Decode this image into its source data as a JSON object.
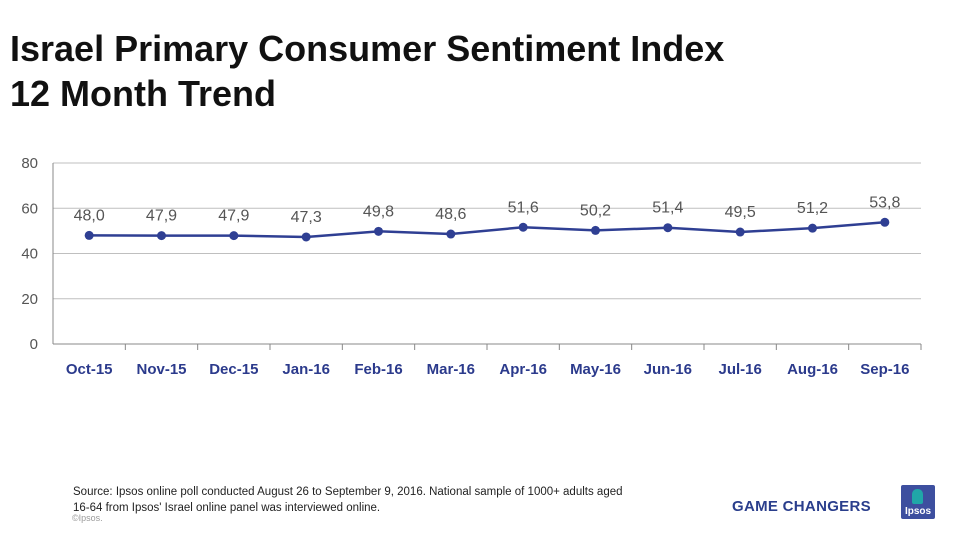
{
  "chart_data": {
    "type": "line",
    "title": [
      "Israel Primary Consumer Sentiment Index",
      "12 Month Trend"
    ],
    "categories": [
      "Oct-15",
      "Nov-15",
      "Dec-15",
      "Jan-16",
      "Feb-16",
      "Mar-16",
      "Apr-16",
      "May-16",
      "Jun-16",
      "Jul-16",
      "Aug-16",
      "Sep-16"
    ],
    "values": [
      48.0,
      47.9,
      47.9,
      47.3,
      49.8,
      48.6,
      51.6,
      50.2,
      51.4,
      49.5,
      51.2,
      53.8
    ],
    "data_labels": [
      "48,0",
      "47,9",
      "47,9",
      "47,3",
      "49,8",
      "48,6",
      "51,6",
      "50,2",
      "51,4",
      "49,5",
      "51,2",
      "53,8"
    ],
    "y_ticks": [
      "0",
      "20",
      "40",
      "60",
      "80"
    ],
    "ylim": [
      0,
      80
    ],
    "xlabel": "",
    "ylabel": "",
    "grid": true,
    "legend": "none",
    "line_color": "#2f3f93"
  },
  "footer": {
    "source": "Source: Ipsos online poll conducted August 26 to September 9, 2016. National sample of 1000+ adults aged 16-64 from Ipsos' Israel online panel was interviewed online.",
    "copyright": "©Ipsos.",
    "tagline": "GAME CHANGERS",
    "logo_text": "Ipsos"
  }
}
